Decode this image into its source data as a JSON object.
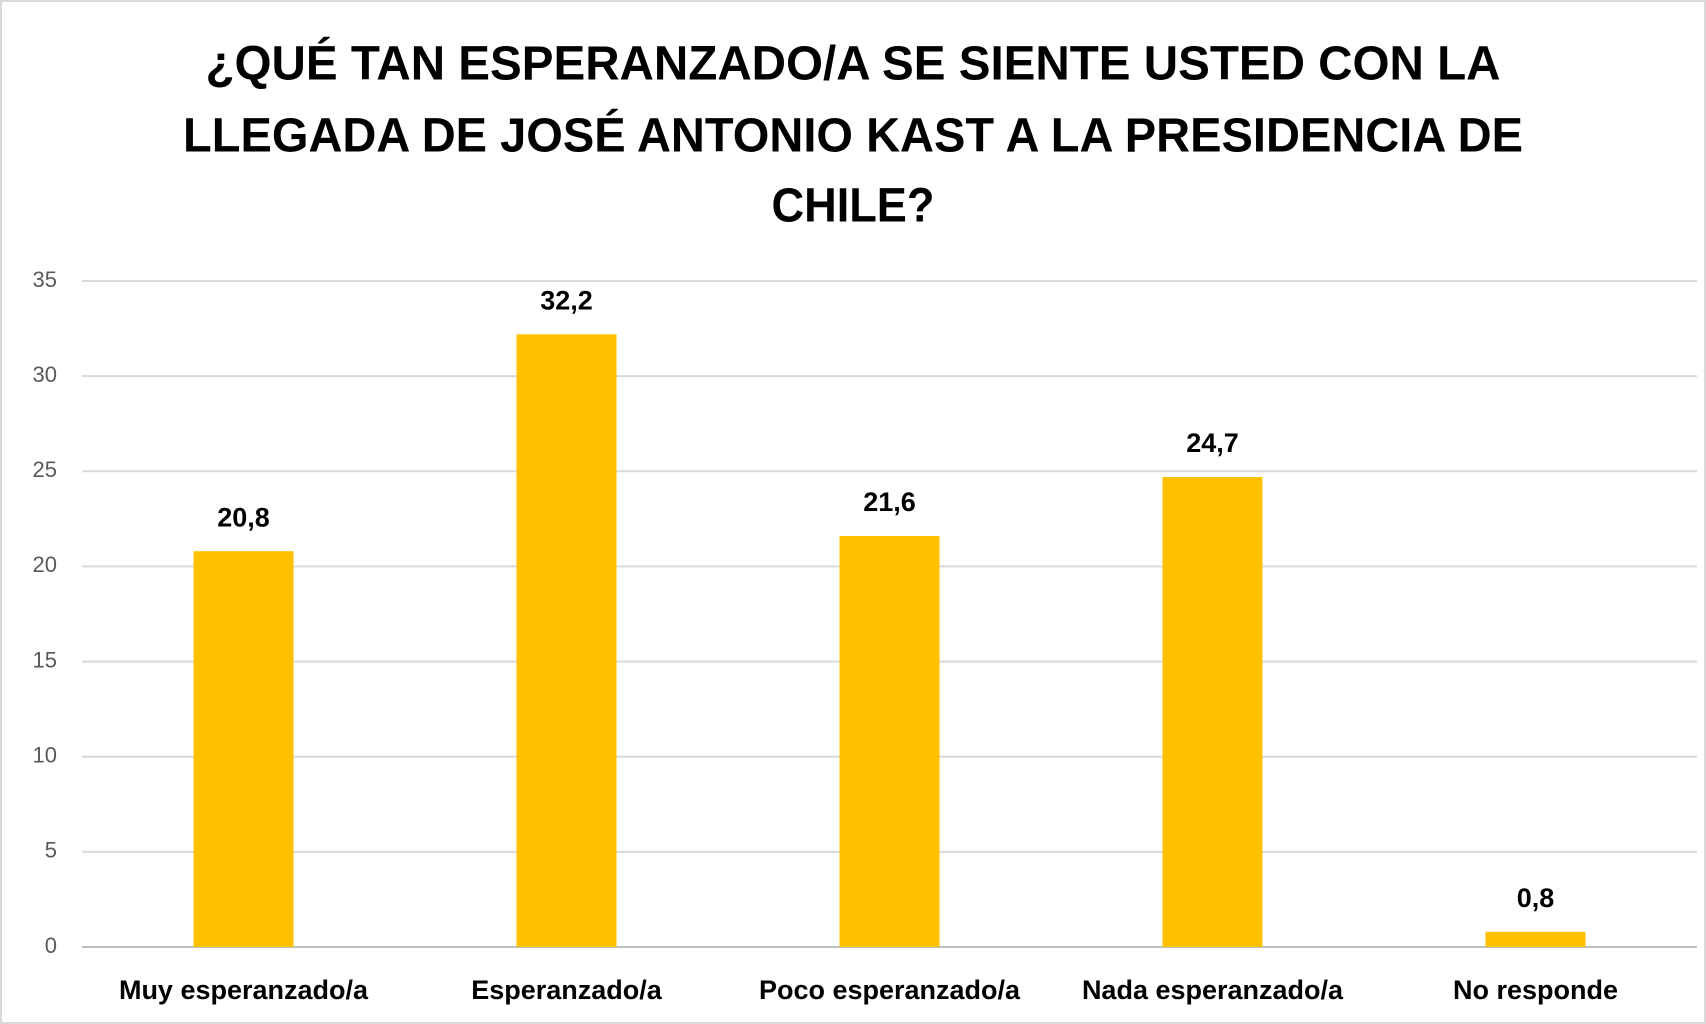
{
  "chart_data": {
    "type": "bar",
    "title": [
      "¿QUÉ TAN ESPERANZADO/A SE SIENTE USTED CON LA",
      "LLEGADA DE JOSÉ ANTONIO KAST A LA PRESIDENCIA DE",
      "CHILE?"
    ],
    "categories": [
      "Muy esperanzado/a",
      "Esperanzado/a",
      "Poco esperanzado/a",
      "Nada esperanzado/a",
      "No responde"
    ],
    "values": [
      20.8,
      32.2,
      21.6,
      24.7,
      0.8
    ],
    "value_labels": [
      "20,8",
      "32,2",
      "21,6",
      "24,7",
      "0,8"
    ],
    "color": "#ffc000",
    "ylim": [
      0,
      35
    ],
    "yticks": [
      0,
      5,
      10,
      15,
      20,
      25,
      30,
      35
    ],
    "grid": true
  }
}
